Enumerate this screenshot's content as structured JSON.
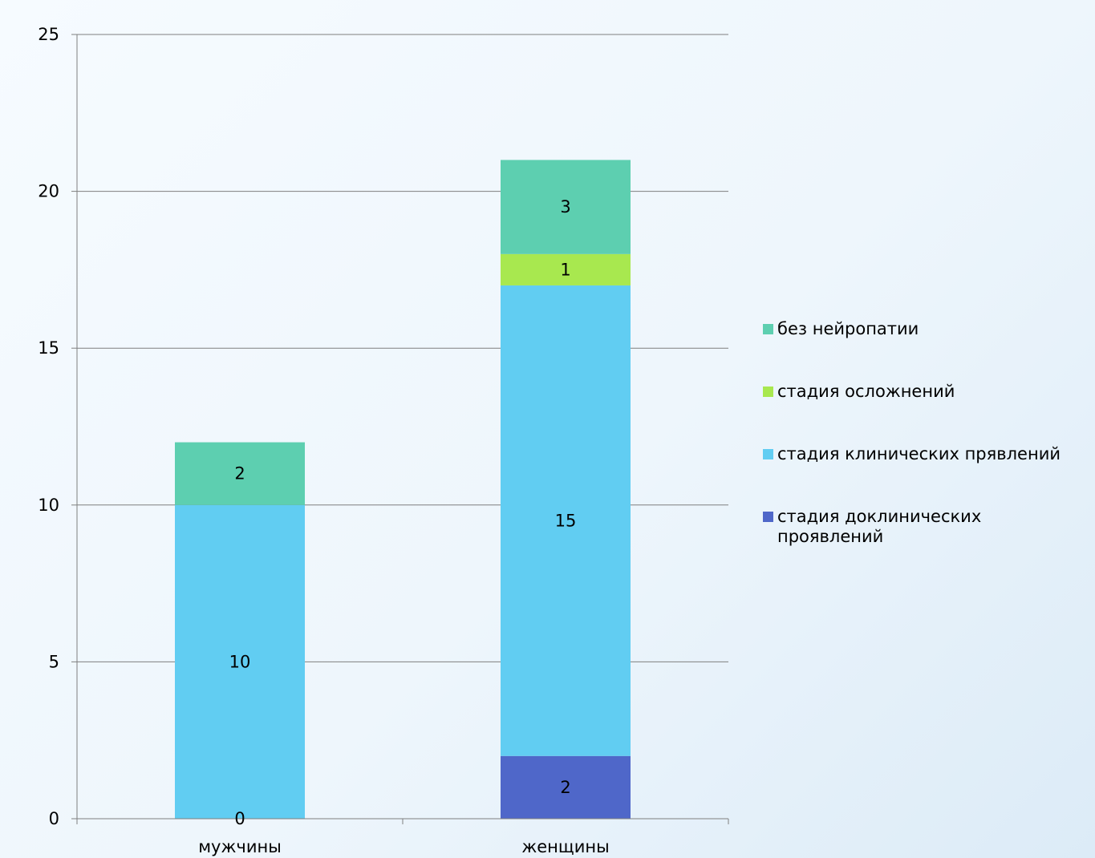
{
  "chart_data": {
    "type": "bar",
    "stacked": true,
    "categories": [
      "мужчины",
      "женщины"
    ],
    "ylim": [
      0,
      25
    ],
    "yticks": [
      0,
      5,
      10,
      15,
      20,
      25
    ],
    "grid": true,
    "legend_position": "right",
    "series": [
      {
        "name": "стадия доклинических проявлений",
        "color": "#4f67c9",
        "values": [
          0,
          2
        ]
      },
      {
        "name": "стадия клинических прявлений",
        "color": "#61cdf2",
        "values": [
          10,
          15
        ]
      },
      {
        "name": "стадия осложнений",
        "color": "#a8e84f",
        "values": [
          0,
          1
        ]
      },
      {
        "name": "без нейропатии",
        "color": "#5dcfb0",
        "values": [
          2,
          3
        ]
      }
    ],
    "data_labels": [
      {
        "category": 0,
        "series": 0,
        "text": "0"
      },
      {
        "category": 0,
        "series": 1,
        "text": "10"
      },
      {
        "category": 0,
        "series": 3,
        "text": "2"
      },
      {
        "category": 1,
        "series": 0,
        "text": "2"
      },
      {
        "category": 1,
        "series": 1,
        "text": "15"
      },
      {
        "category": 1,
        "series": 2,
        "text": "1"
      },
      {
        "category": 1,
        "series": 3,
        "text": "3"
      }
    ],
    "legend_order": [
      3,
      2,
      1,
      0
    ]
  }
}
